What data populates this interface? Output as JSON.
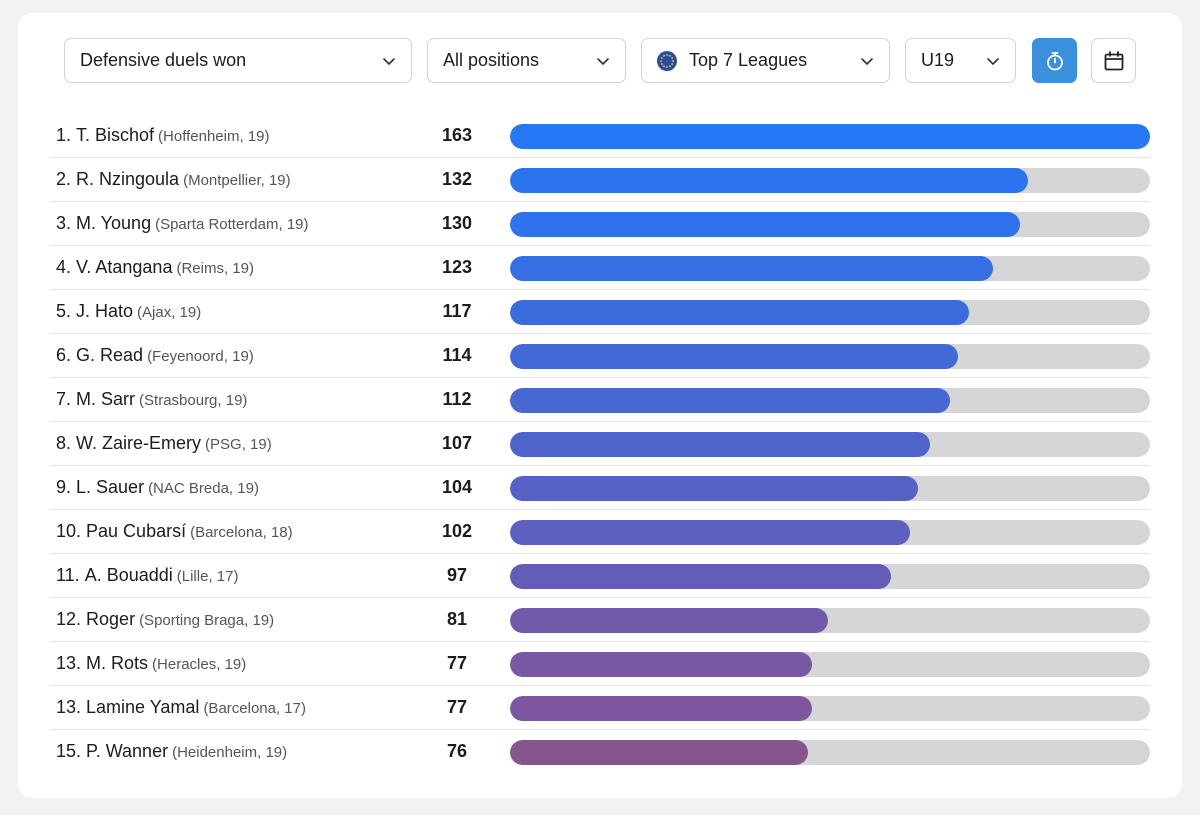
{
  "filters": {
    "metric": {
      "label": "Defensive duels won",
      "icon": "chevron-down-icon"
    },
    "position": {
      "label": "All positions",
      "icon": "chevron-down-icon"
    },
    "competition": {
      "label": "Top 7 Leagues",
      "flag": "eu-flag-icon",
      "icon": "chevron-down-icon"
    },
    "age": {
      "label": "U19",
      "icon": "chevron-down-icon"
    },
    "per90_toggle": {
      "icon": "stopwatch-icon",
      "active": true
    },
    "season_toggle": {
      "icon": "calendar-icon",
      "active": false
    }
  },
  "chart_data": {
    "type": "bar",
    "title": "",
    "max": 163,
    "rows": [
      {
        "rank": "1.",
        "name": "T. Bischof",
        "meta": "(Hoffenheim, 19)",
        "value": 163,
        "color": "#2678f4"
      },
      {
        "rank": "2.",
        "name": "R. Nzingoula",
        "meta": "(Montpellier, 19)",
        "value": 132,
        "color": "#2b74ee"
      },
      {
        "rank": "3.",
        "name": "M. Young",
        "meta": "(Sparta Rotterdam, 19)",
        "value": 130,
        "color": "#2f73ec"
      },
      {
        "rank": "4.",
        "name": "V. Atangana",
        "meta": "(Reims, 19)",
        "value": 123,
        "color": "#356fe3"
      },
      {
        "rank": "5.",
        "name": "J. Hato",
        "meta": "(Ajax, 19)",
        "value": 117,
        "color": "#3b6cdc"
      },
      {
        "rank": "6.",
        "name": "G. Read",
        "meta": "(Feyenoord, 19)",
        "value": 114,
        "color": "#416ad7"
      },
      {
        "rank": "7.",
        "name": "M. Sarr",
        "meta": "(Strasbourg, 19)",
        "value": 112,
        "color": "#4767d1"
      },
      {
        "rank": "8.",
        "name": "W. Zaire-Emery",
        "meta": "(PSG, 19)",
        "value": 107,
        "color": "#4f64cb"
      },
      {
        "rank": "9.",
        "name": "L. Sauer",
        "meta": "(NAC Breda, 19)",
        "value": 104,
        "color": "#5562c4"
      },
      {
        "rank": "10.",
        "name": "Pau Cubarsí",
        "meta": "(Barcelona, 18)",
        "value": 102,
        "color": "#5c60be"
      },
      {
        "rank": "11.",
        "name": "A. Bouaddi",
        "meta": "(Lille, 17)",
        "value": 97,
        "color": "#655db5"
      },
      {
        "rank": "12.",
        "name": "Roger",
        "meta": "(Sporting Braga, 19)",
        "value": 81,
        "color": "#715aaa"
      },
      {
        "rank": "13.",
        "name": "M. Rots",
        "meta": "(Heracles, 19)",
        "value": 77,
        "color": "#7858a3"
      },
      {
        "rank": "13.",
        "name": "Lamine Yamal",
        "meta": "(Barcelona, 17)",
        "value": 77,
        "color": "#7c57a0"
      },
      {
        "rank": "15.",
        "name": "P. Wanner",
        "meta": "(Heidenheim, 19)",
        "value": 76,
        "color": "#86548f"
      }
    ]
  }
}
